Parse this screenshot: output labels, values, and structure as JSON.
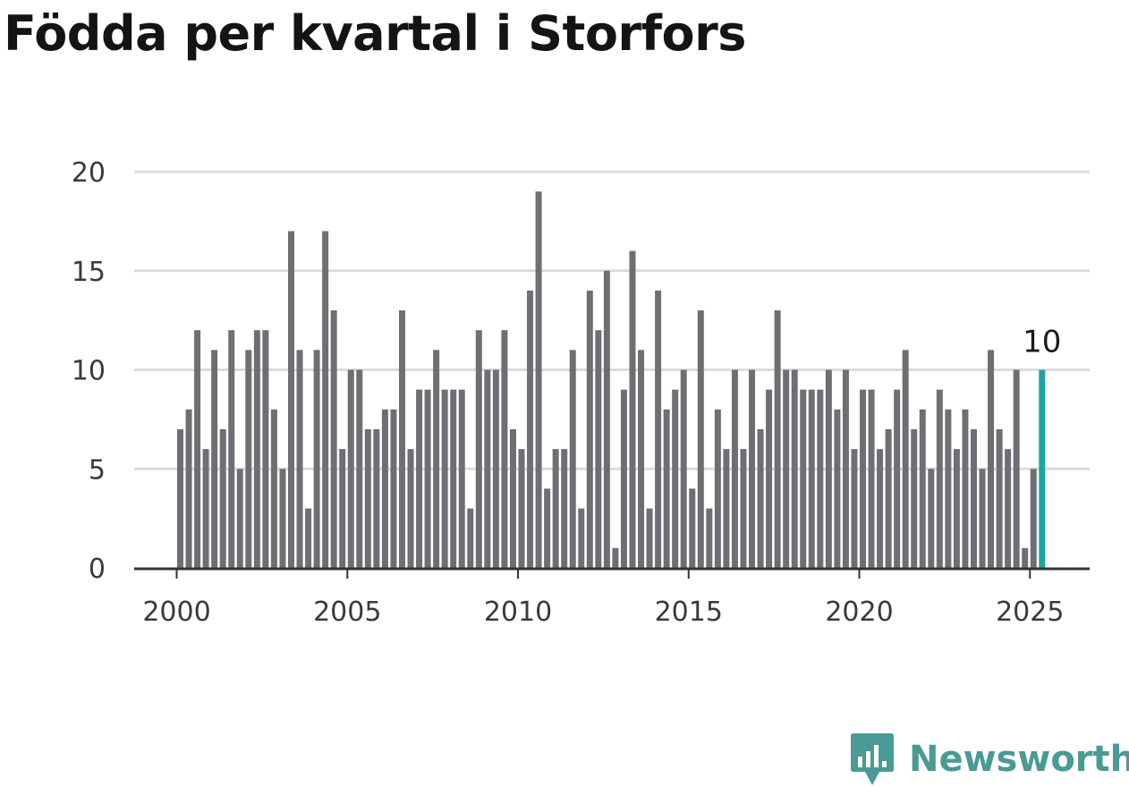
{
  "chart_data": {
    "type": "bar",
    "title": "Födda per kvartal i Storfors",
    "xlabel": "",
    "ylabel": "",
    "ylim": [
      0,
      20
    ],
    "yticks": [
      "0",
      "5",
      "10",
      "15",
      "20"
    ],
    "xticks": [
      "2000",
      "2005",
      "2010",
      "2015",
      "2020",
      "2025"
    ],
    "start": "2000 Q1",
    "end": "2025 Q2",
    "values": [
      7,
      8,
      12,
      6,
      11,
      7,
      12,
      5,
      11,
      12,
      12,
      8,
      5,
      17,
      11,
      3,
      11,
      17,
      13,
      6,
      10,
      10,
      7,
      7,
      8,
      8,
      13,
      6,
      9,
      9,
      11,
      9,
      9,
      9,
      3,
      12,
      10,
      10,
      12,
      7,
      6,
      14,
      19,
      4,
      6,
      6,
      11,
      3,
      14,
      12,
      15,
      1,
      9,
      16,
      11,
      3,
      14,
      8,
      9,
      10,
      4,
      13,
      3,
      8,
      6,
      10,
      6,
      10,
      7,
      9,
      13,
      10,
      10,
      9,
      9,
      9,
      10,
      8,
      10,
      6,
      9,
      9,
      6,
      7,
      9,
      11,
      7,
      8,
      5,
      9,
      8,
      6,
      8,
      7,
      5,
      11,
      7,
      6,
      10,
      1,
      5,
      10
    ],
    "highlight": {
      "value": "10",
      "color": "#1aa6a0"
    },
    "bar_color": "#6f6e73",
    "grid": true
  },
  "branding": {
    "name": "Newsworthy",
    "color": "#4a9a95"
  }
}
